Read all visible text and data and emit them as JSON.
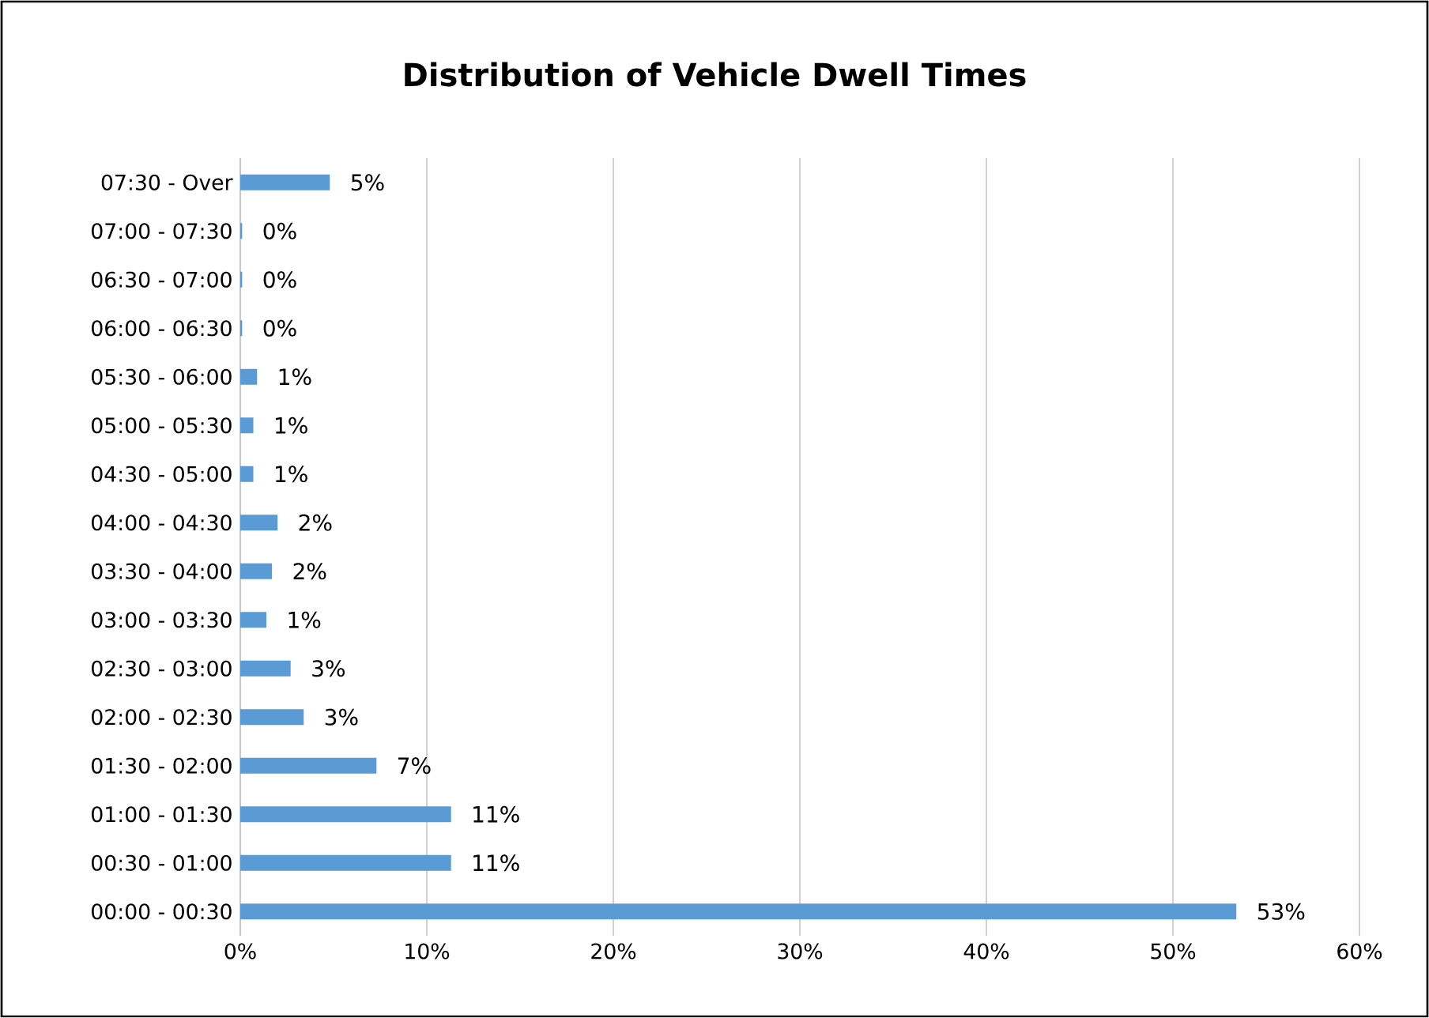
{
  "chart_data": {
    "type": "bar",
    "orientation": "horizontal",
    "title": "Distribution of Vehicle Dwell Times",
    "categories": [
      "07:30 - Over",
      "07:00 - 07:30",
      "06:30 - 07:00",
      "06:00 - 06:30",
      "05:30 - 06:00",
      "05:00 - 05:30",
      "04:30 - 05:00",
      "04:00 - 04:30",
      "03:30 - 04:00",
      "03:00 - 03:30",
      "02:30 - 03:00",
      "02:00 - 02:30",
      "01:30 - 02:00",
      "01:00 - 01:30",
      "00:30 - 01:00",
      "00:00 - 00:30"
    ],
    "values": [
      4.8,
      0.1,
      0.1,
      0.1,
      0.9,
      0.7,
      0.7,
      2.0,
      1.7,
      1.4,
      2.7,
      3.4,
      7.3,
      11.3,
      11.3,
      53.4
    ],
    "value_labels": [
      "5%",
      "0%",
      "0%",
      "0%",
      "1%",
      "1%",
      "1%",
      "2%",
      "2%",
      "1%",
      "3%",
      "3%",
      "7%",
      "11%",
      "11%",
      "53%"
    ],
    "color": "#5b9bd5",
    "xlim": [
      0,
      60
    ],
    "xticks": [
      {
        "value": 0,
        "label": "0%"
      },
      {
        "value": 10,
        "label": "10%"
      },
      {
        "value": 20,
        "label": "20%"
      },
      {
        "value": 30,
        "label": "30%"
      },
      {
        "value": 40,
        "label": "40%"
      },
      {
        "value": 50,
        "label": "50%"
      },
      {
        "value": 60,
        "label": "60%"
      }
    ],
    "grid": "x"
  }
}
